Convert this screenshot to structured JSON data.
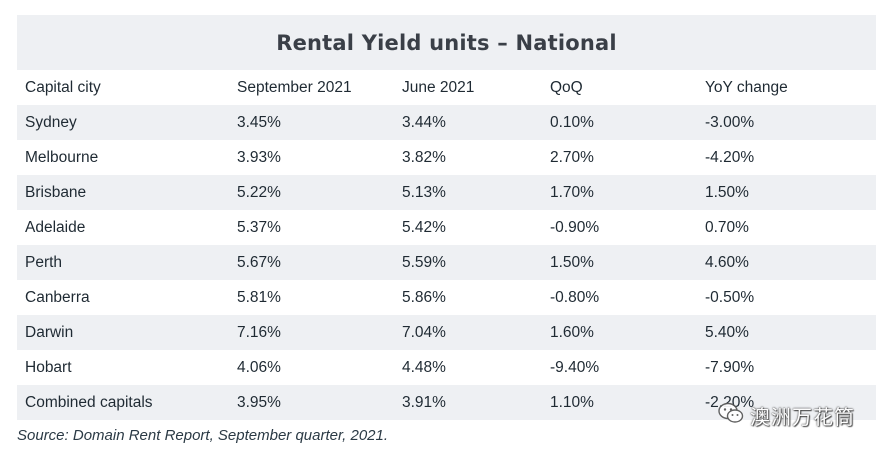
{
  "title": "Rental Yield units – National",
  "columns": [
    "Capital city",
    "September 2021",
    "June 2021",
    "QoQ",
    "YoY change"
  ],
  "rows": [
    [
      "Sydney",
      "3.45%",
      "3.44%",
      "0.10%",
      "-3.00%"
    ],
    [
      "Melbourne",
      "3.93%",
      "3.82%",
      "2.70%",
      "-4.20%"
    ],
    [
      "Brisbane",
      "5.22%",
      "5.13%",
      "1.70%",
      "1.50%"
    ],
    [
      "Adelaide",
      "5.37%",
      "5.42%",
      "-0.90%",
      "0.70%"
    ],
    [
      "Perth",
      "5.67%",
      "5.59%",
      "1.50%",
      "4.60%"
    ],
    [
      "Canberra",
      "5.81%",
      "5.86%",
      "-0.80%",
      "-0.50%"
    ],
    [
      "Darwin",
      "7.16%",
      "7.04%",
      "1.60%",
      "5.40%"
    ],
    [
      "Hobart",
      "4.06%",
      "4.48%",
      "-9.40%",
      "-7.90%"
    ],
    [
      "Combined capitals",
      "3.95%",
      "3.91%",
      "1.10%",
      "-2.20%"
    ]
  ],
  "source": "Source: Domain Rent Report, September quarter, 2021.",
  "watermark": {
    "text": "澳洲万花筒",
    "icon": "wechat-icon"
  },
  "colors": {
    "stripe": "#eef0f3",
    "text": "#1f2a33",
    "title": "#3a3f47"
  }
}
